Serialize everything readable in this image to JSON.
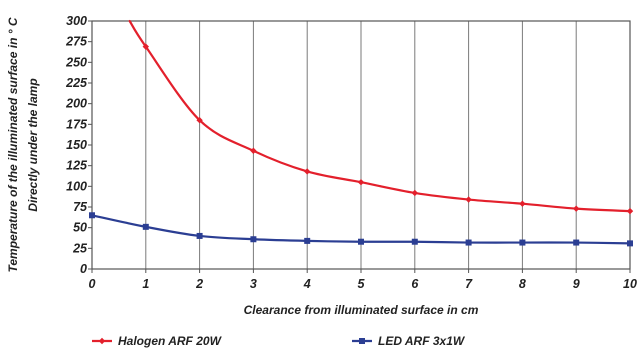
{
  "chart_data": {
    "type": "line",
    "xlabel": "Clearance from illuminated surface in cm",
    "ylabel": [
      "Temperature of the illuminated surface in ° C",
      "Directly under the lamp"
    ],
    "xlim": [
      0,
      10
    ],
    "ylim": [
      0,
      300
    ],
    "xticks": [
      "0",
      "1",
      "2",
      "3",
      "4",
      "5",
      "6",
      "7",
      "8",
      "9",
      "10"
    ],
    "yticks": [
      "0",
      "25",
      "50",
      "75",
      "100",
      "125",
      "150",
      "175",
      "200",
      "225",
      "250",
      "275",
      "300"
    ],
    "grid": "vertical",
    "legend_position": "bottom",
    "series": [
      {
        "name": "Halogen ARF 20W",
        "color": "#e3202c",
        "marker": "diamond",
        "x": [
          1,
          2,
          3,
          4,
          5,
          6,
          7,
          8,
          9,
          10
        ],
        "y": [
          269,
          180,
          143,
          118,
          105,
          92,
          84,
          79,
          73,
          70
        ],
        "curve_start": {
          "x": 0.7,
          "y": 300
        }
      },
      {
        "name": "LED ARF 3x1W",
        "color": "#2b3e93",
        "marker": "square",
        "x": [
          0,
          1,
          2,
          3,
          4,
          5,
          6,
          7,
          8,
          9,
          10
        ],
        "y": [
          65,
          51,
          40,
          36,
          34,
          33,
          33,
          32,
          32,
          32,
          31
        ]
      }
    ]
  }
}
